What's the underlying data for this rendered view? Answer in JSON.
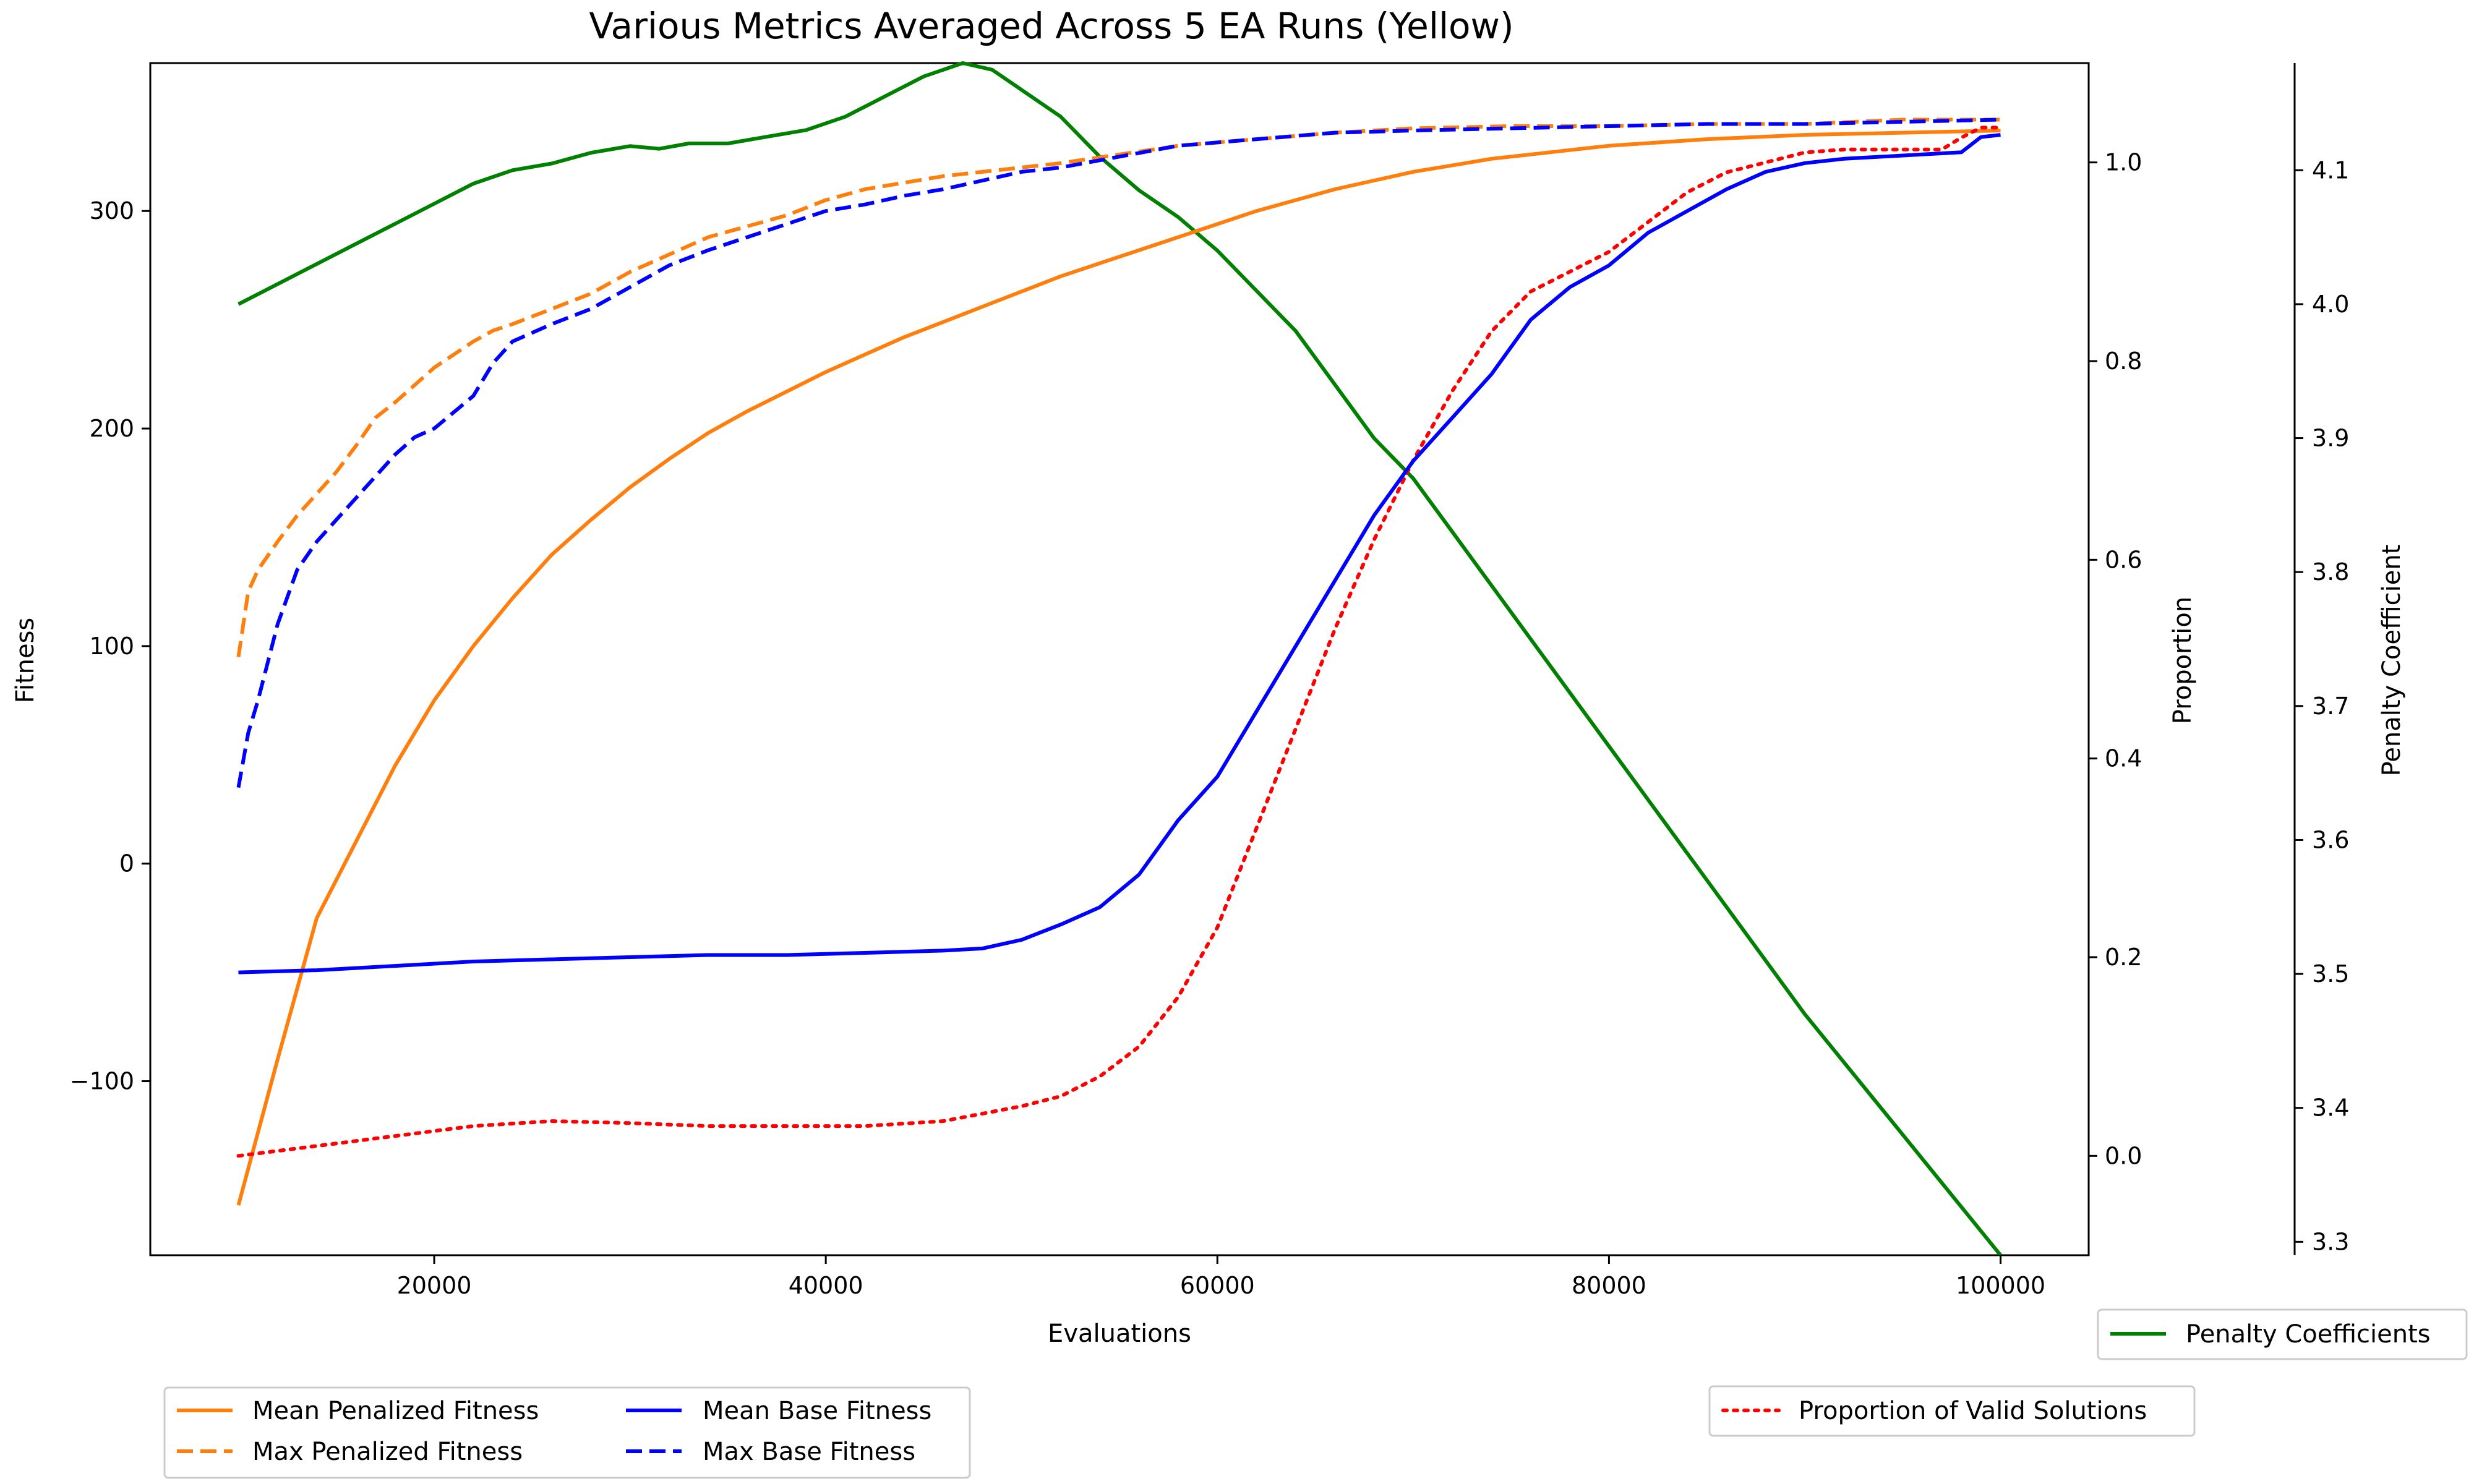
{
  "chart_data": {
    "type": "line",
    "title": "Various Metrics Averaged Across 5 EA Runs (Yellow)",
    "xlabel": "Evaluations",
    "ylabel_left": "Fitness",
    "ylabel_right1": "Proportion",
    "ylabel_right2": "Penalty Coefficient",
    "xlim": [
      5500,
      104500
    ],
    "ylim_left": [
      -180,
      368
    ],
    "ylim_right1": [
      -0.1,
      1.1
    ],
    "ylim_right2": [
      3.29,
      4.18
    ],
    "xticks": [
      20000,
      40000,
      60000,
      80000,
      100000
    ],
    "xtick_labels": [
      "20000",
      "40000",
      "60000",
      "80000",
      "100000"
    ],
    "yticks_left": [
      -100,
      0,
      100,
      200,
      300
    ],
    "ytick_labels_left": [
      "−100",
      "0",
      "100",
      "200",
      "300"
    ],
    "yticks_right1": [
      0.0,
      0.2,
      0.4,
      0.6,
      0.8,
      1.0
    ],
    "ytick_labels_right1": [
      "0.0",
      "0.2",
      "0.4",
      "0.6",
      "0.8",
      "1.0"
    ],
    "yticks_right2": [
      3.3,
      3.4,
      3.5,
      3.6,
      3.7,
      3.8,
      3.9,
      4.0,
      4.1
    ],
    "ytick_labels_right2": [
      "3.3",
      "3.4",
      "3.5",
      "3.6",
      "3.7",
      "3.8",
      "3.9",
      "4.0",
      "4.1"
    ],
    "grid": false,
    "series": [
      {
        "name": "Mean Penalized Fitness",
        "axis": "left",
        "color": "#ff7f0e",
        "dash": "solid",
        "x": [
          10000,
          12000,
          14000,
          16000,
          18000,
          20000,
          22000,
          24000,
          26000,
          28000,
          30000,
          32000,
          34000,
          36000,
          38000,
          40000,
          42000,
          44000,
          46000,
          48000,
          50000,
          52000,
          54000,
          56000,
          58000,
          60000,
          62000,
          64000,
          66000,
          68000,
          70000,
          72000,
          74000,
          76000,
          78000,
          80000,
          85000,
          90000,
          95000,
          100000
        ],
        "y": [
          -157,
          -90,
          -25,
          10,
          45,
          75,
          100,
          122,
          142,
          158,
          173,
          186,
          198,
          208,
          217,
          226,
          234,
          242,
          249,
          256,
          263,
          270,
          276,
          282,
          288,
          294,
          300,
          305,
          310,
          314,
          318,
          321,
          324,
          326,
          328,
          330,
          333,
          335,
          336,
          337
        ]
      },
      {
        "name": "Max Penalized Fitness",
        "axis": "left",
        "color": "#ff7f0e",
        "dash": "dashed",
        "x": [
          10000,
          10500,
          11000,
          12000,
          13000,
          14000,
          15000,
          16000,
          17000,
          18000,
          19000,
          20000,
          22000,
          23000,
          24000,
          26000,
          28000,
          30000,
          32000,
          34000,
          36000,
          38000,
          40000,
          42000,
          44000,
          46000,
          48000,
          50000,
          52000,
          55000,
          58000,
          62000,
          66000,
          70000,
          75000,
          80000,
          85000,
          90000,
          95000,
          100000
        ],
        "y": [
          95,
          125,
          135,
          148,
          160,
          170,
          180,
          192,
          205,
          212,
          220,
          228,
          240,
          245,
          248,
          255,
          262,
          272,
          280,
          288,
          293,
          298,
          305,
          310,
          313,
          316,
          318,
          320,
          322,
          326,
          330,
          333,
          336,
          338,
          339,
          339,
          340,
          340,
          342,
          342
        ]
      },
      {
        "name": "Mean Base Fitness",
        "axis": "left",
        "color": "#0000ff",
        "dash": "solid",
        "x": [
          10000,
          14000,
          18000,
          22000,
          26000,
          30000,
          34000,
          38000,
          42000,
          46000,
          48000,
          50000,
          52000,
          54000,
          56000,
          58000,
          60000,
          62000,
          64000,
          66000,
          68000,
          70000,
          72000,
          74000,
          76000,
          78000,
          80000,
          82000,
          84000,
          86000,
          88000,
          90000,
          92000,
          94000,
          96000,
          98000,
          99000,
          100000
        ],
        "y": [
          -50,
          -49,
          -47,
          -45,
          -44,
          -43,
          -42,
          -42,
          -41,
          -40,
          -39,
          -35,
          -28,
          -20,
          -5,
          20,
          40,
          70,
          100,
          130,
          160,
          185,
          205,
          225,
          250,
          265,
          275,
          290,
          300,
          310,
          318,
          322,
          324,
          325,
          326,
          327,
          334,
          335
        ]
      },
      {
        "name": "Max Base Fitness",
        "axis": "left",
        "color": "#0000ff",
        "dash": "dashed",
        "x": [
          10000,
          10500,
          11000,
          12000,
          13000,
          14000,
          15000,
          16000,
          17000,
          18000,
          19000,
          20000,
          22000,
          23000,
          24000,
          26000,
          28000,
          30000,
          32000,
          34000,
          36000,
          38000,
          40000,
          42000,
          44000,
          46000,
          48000,
          50000,
          52000,
          55000,
          58000,
          62000,
          66000,
          70000,
          75000,
          80000,
          85000,
          90000,
          95000,
          100000
        ],
        "y": [
          35,
          60,
          75,
          110,
          135,
          148,
          158,
          168,
          178,
          188,
          196,
          200,
          215,
          230,
          240,
          248,
          255,
          265,
          275,
          282,
          288,
          294,
          300,
          303,
          307,
          310,
          314,
          318,
          320,
          325,
          330,
          333,
          336,
          337,
          338,
          339,
          340,
          340,
          341,
          342
        ]
      },
      {
        "name": "Proportion of Valid Solutions",
        "axis": "right1",
        "color": "#ff0000",
        "dash": "dotted",
        "x": [
          10000,
          14000,
          18000,
          22000,
          26000,
          30000,
          34000,
          38000,
          42000,
          46000,
          50000,
          52000,
          54000,
          56000,
          58000,
          60000,
          62000,
          64000,
          66000,
          68000,
          70000,
          72000,
          74000,
          76000,
          78000,
          80000,
          82000,
          84000,
          86000,
          88000,
          90000,
          92000,
          94000,
          96000,
          97000,
          98000,
          99000,
          100000
        ],
        "y": [
          0.0,
          0.01,
          0.02,
          0.03,
          0.035,
          0.033,
          0.03,
          0.03,
          0.03,
          0.035,
          0.05,
          0.06,
          0.08,
          0.11,
          0.16,
          0.23,
          0.33,
          0.43,
          0.53,
          0.62,
          0.7,
          0.77,
          0.83,
          0.87,
          0.89,
          0.91,
          0.94,
          0.97,
          0.99,
          1.0,
          1.01,
          1.013,
          1.013,
          1.013,
          1.013,
          1.025,
          1.035,
          1.035
        ]
      },
      {
        "name": "Penalty Coefficients",
        "axis": "right2",
        "color": "#008000",
        "dash": "solid",
        "x": [
          10000,
          12000,
          14000,
          16000,
          18000,
          20000,
          22000,
          24000,
          26000,
          28000,
          30000,
          31500,
          33000,
          35000,
          37000,
          39000,
          41000,
          43000,
          45000,
          47000,
          48500,
          50000,
          52000,
          54000,
          56000,
          58000,
          60000,
          62000,
          64000,
          66000,
          68000,
          70000,
          72000,
          74000,
          76000,
          78000,
          80000,
          85000,
          90000,
          95000,
          100000
        ],
        "y": [
          4.0,
          4.015,
          4.03,
          4.045,
          4.06,
          4.075,
          4.09,
          4.1,
          4.105,
          4.113,
          4.118,
          4.116,
          4.12,
          4.12,
          4.125,
          4.13,
          4.14,
          4.155,
          4.17,
          4.18,
          4.175,
          4.16,
          4.14,
          4.11,
          4.085,
          4.065,
          4.04,
          4.01,
          3.98,
          3.94,
          3.9,
          3.87,
          3.83,
          3.79,
          3.75,
          3.71,
          3.67,
          3.57,
          3.47,
          3.38,
          3.29
        ]
      }
    ],
    "legend": {
      "group_left": {
        "placement": "bottom-left",
        "columns": [
          [
            "Mean Penalized Fitness",
            "Max Penalized Fitness"
          ],
          [
            "Mean Base Fitness",
            "Max Base Fitness"
          ]
        ]
      },
      "group_right1": {
        "placement": "bottom-right",
        "entries": [
          "Proportion of Valid Solutions"
        ]
      },
      "group_right2": {
        "placement": "bottom-right",
        "entries": [
          "Penalty Coefficients"
        ]
      }
    }
  }
}
